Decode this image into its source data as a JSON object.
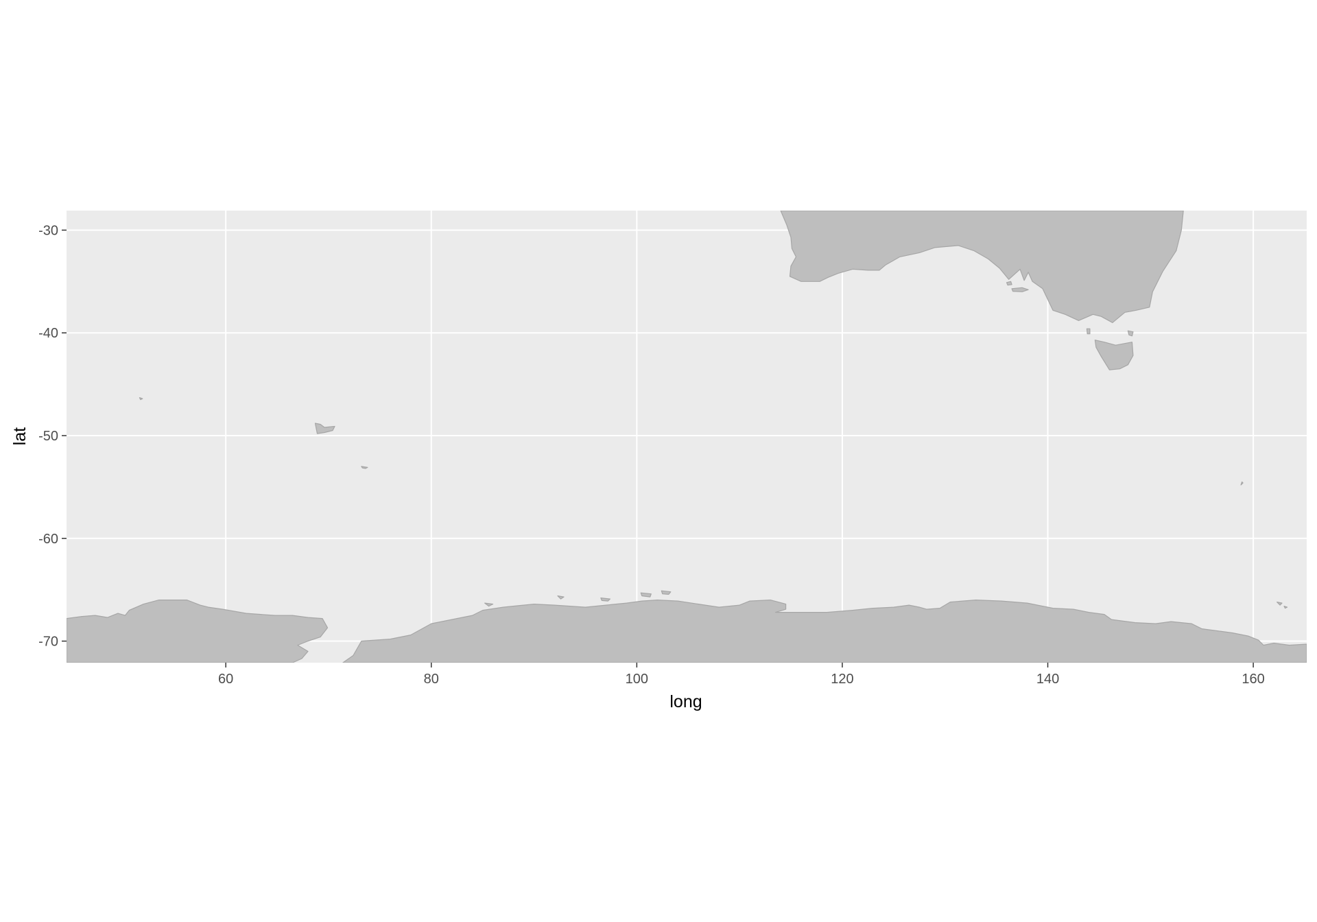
{
  "map": {
    "panel_background": "#ebebeb",
    "grid_color": "#ffffff",
    "land_fill": "#bebebe",
    "land_outline": "#a6a6a6",
    "xlim": [
      44.5,
      165.2
    ],
    "ylim": [
      -72.1,
      -28.1
    ],
    "xlabel": "long",
    "ylabel": "lat",
    "x_ticks": [
      60,
      80,
      100,
      120,
      140,
      160
    ],
    "y_ticks": [
      -30,
      -40,
      -50,
      -60,
      -70
    ],
    "x_tick_labels": [
      "60",
      "80",
      "100",
      "120",
      "140",
      "160"
    ],
    "y_tick_labels": [
      "-30",
      "-40",
      "-50",
      "-60",
      "-70"
    ],
    "land_polygons": [
      {
        "name": "Australia",
        "coords": [
          [
            114.0,
            -28.1
          ],
          [
            114.6,
            -29.5
          ],
          [
            115.0,
            -30.7
          ],
          [
            115.1,
            -31.8
          ],
          [
            115.5,
            -32.6
          ],
          [
            115.0,
            -33.5
          ],
          [
            114.9,
            -34.5
          ],
          [
            116.0,
            -35.0
          ],
          [
            117.8,
            -35.0
          ],
          [
            118.6,
            -34.6
          ],
          [
            119.6,
            -34.2
          ],
          [
            121.0,
            -33.8
          ],
          [
            122.5,
            -33.9
          ],
          [
            123.6,
            -33.9
          ],
          [
            124.2,
            -33.4
          ],
          [
            125.6,
            -32.6
          ],
          [
            127.5,
            -32.2
          ],
          [
            129.0,
            -31.7
          ],
          [
            131.3,
            -31.5
          ],
          [
            132.8,
            -32.0
          ],
          [
            134.2,
            -32.8
          ],
          [
            135.3,
            -33.7
          ],
          [
            136.2,
            -34.8
          ],
          [
            137.3,
            -33.8
          ],
          [
            137.7,
            -34.9
          ],
          [
            138.1,
            -34.1
          ],
          [
            138.5,
            -35.0
          ],
          [
            139.5,
            -35.7
          ],
          [
            140.5,
            -37.8
          ],
          [
            141.7,
            -38.2
          ],
          [
            143.0,
            -38.8
          ],
          [
            144.4,
            -38.2
          ],
          [
            145.2,
            -38.4
          ],
          [
            146.3,
            -39.0
          ],
          [
            147.5,
            -38.0
          ],
          [
            148.6,
            -37.8
          ],
          [
            149.9,
            -37.5
          ],
          [
            150.2,
            -36.0
          ],
          [
            151.2,
            -34.0
          ],
          [
            152.5,
            -32.0
          ],
          [
            153.0,
            -30.0
          ],
          [
            153.2,
            -28.1
          ]
        ]
      },
      {
        "name": "Kangaroo Island",
        "coords": [
          [
            136.5,
            -35.7
          ],
          [
            137.5,
            -35.6
          ],
          [
            138.1,
            -35.8
          ],
          [
            137.5,
            -36.0
          ],
          [
            136.6,
            -35.95
          ]
        ]
      },
      {
        "name": "Eyre Peninsula Islet",
        "coords": [
          [
            136.0,
            -35.1
          ],
          [
            136.4,
            -35.0
          ],
          [
            136.5,
            -35.3
          ],
          [
            136.1,
            -35.35
          ]
        ]
      },
      {
        "name": "King Island",
        "coords": [
          [
            143.8,
            -39.6
          ],
          [
            144.1,
            -39.6
          ],
          [
            144.1,
            -40.1
          ],
          [
            143.85,
            -40.1
          ]
        ]
      },
      {
        "name": "Flinders Island",
        "coords": [
          [
            147.8,
            -39.8
          ],
          [
            148.3,
            -39.9
          ],
          [
            148.2,
            -40.3
          ],
          [
            147.9,
            -40.2
          ]
        ]
      },
      {
        "name": "Tasmania",
        "coords": [
          [
            144.6,
            -40.7
          ],
          [
            145.5,
            -40.9
          ],
          [
            146.6,
            -41.2
          ],
          [
            148.2,
            -40.9
          ],
          [
            148.3,
            -42.2
          ],
          [
            147.8,
            -43.1
          ],
          [
            147.0,
            -43.5
          ],
          [
            146.0,
            -43.6
          ],
          [
            145.2,
            -42.3
          ],
          [
            144.7,
            -41.4
          ]
        ]
      },
      {
        "name": "Kerguelen Islands",
        "coords": [
          [
            68.7,
            -48.8
          ],
          [
            69.2,
            -48.9
          ],
          [
            69.6,
            -49.2
          ],
          [
            70.6,
            -49.1
          ],
          [
            70.4,
            -49.5
          ],
          [
            69.6,
            -49.7
          ],
          [
            68.9,
            -49.8
          ],
          [
            68.8,
            -49.3
          ]
        ]
      },
      {
        "name": "Heard Island",
        "coords": [
          [
            73.2,
            -53.0
          ],
          [
            73.8,
            -53.1
          ],
          [
            73.6,
            -53.2
          ],
          [
            73.3,
            -53.15
          ]
        ]
      },
      {
        "name": "Crozet Islet",
        "coords": [
          [
            51.6,
            -46.3
          ],
          [
            51.9,
            -46.4
          ],
          [
            51.7,
            -46.5
          ]
        ]
      },
      {
        "name": "Macquarie Island",
        "coords": [
          [
            158.9,
            -54.5
          ],
          [
            159.0,
            -54.6
          ],
          [
            158.8,
            -54.8
          ]
        ]
      },
      {
        "name": "Balleny Islands",
        "coords": [
          [
            162.3,
            -66.2
          ],
          [
            162.8,
            -66.3
          ],
          [
            162.6,
            -66.5
          ]
        ]
      },
      {
        "name": "Balleny Islet",
        "coords": [
          [
            163.0,
            -66.6
          ],
          [
            163.3,
            -66.7
          ],
          [
            163.1,
            -66.8
          ]
        ]
      },
      {
        "name": "Coastal Islet A",
        "coords": [
          [
            102.4,
            -65.1
          ],
          [
            103.3,
            -65.2
          ],
          [
            103.1,
            -65.45
          ],
          [
            102.5,
            -65.4
          ]
        ]
      },
      {
        "name": "Coastal Islet B",
        "coords": [
          [
            100.4,
            -65.3
          ],
          [
            101.4,
            -65.4
          ],
          [
            101.3,
            -65.7
          ],
          [
            100.5,
            -65.6
          ]
        ]
      },
      {
        "name": "Coastal Islet C",
        "coords": [
          [
            96.5,
            -65.8
          ],
          [
            97.4,
            -65.9
          ],
          [
            97.2,
            -66.1
          ],
          [
            96.6,
            -66.05
          ]
        ]
      },
      {
        "name": "Coastal Islet D",
        "coords": [
          [
            92.3,
            -65.6
          ],
          [
            92.9,
            -65.7
          ],
          [
            92.6,
            -65.9
          ]
        ]
      },
      {
        "name": "Coastal Islet E",
        "coords": [
          [
            85.2,
            -66.3
          ],
          [
            86.0,
            -66.4
          ],
          [
            85.6,
            -66.6
          ]
        ]
      },
      {
        "name": "Antarctica West",
        "coords": [
          [
            44.5,
            -67.8
          ],
          [
            46.0,
            -67.6
          ],
          [
            47.3,
            -67.5
          ],
          [
            48.5,
            -67.7
          ],
          [
            49.5,
            -67.3
          ],
          [
            50.2,
            -67.5
          ],
          [
            50.6,
            -67.0
          ],
          [
            52.0,
            -66.4
          ],
          [
            53.5,
            -66.0
          ],
          [
            56.2,
            -66.0
          ],
          [
            57.5,
            -66.5
          ],
          [
            58.3,
            -66.7
          ],
          [
            59.7,
            -66.9
          ],
          [
            62.0,
            -67.3
          ],
          [
            64.8,
            -67.5
          ],
          [
            66.5,
            -67.5
          ],
          [
            68.0,
            -67.7
          ],
          [
            69.4,
            -67.8
          ],
          [
            69.9,
            -68.7
          ],
          [
            69.2,
            -69.6
          ],
          [
            68.0,
            -70.0
          ],
          [
            67.0,
            -70.4
          ],
          [
            68.0,
            -71.0
          ],
          [
            67.4,
            -71.7
          ],
          [
            66.5,
            -72.1
          ],
          [
            44.5,
            -72.1
          ]
        ]
      },
      {
        "name": "Antarctica East",
        "coords": [
          [
            71.4,
            -72.1
          ],
          [
            72.4,
            -71.4
          ],
          [
            73.2,
            -70.0
          ],
          [
            76.0,
            -69.8
          ],
          [
            78.0,
            -69.4
          ],
          [
            80.0,
            -68.3
          ],
          [
            82.0,
            -67.9
          ],
          [
            84.0,
            -67.5
          ],
          [
            85.0,
            -67.0
          ],
          [
            87.0,
            -66.7
          ],
          [
            90.0,
            -66.4
          ],
          [
            92.0,
            -66.5
          ],
          [
            95.0,
            -66.7
          ],
          [
            97.0,
            -66.5
          ],
          [
            99.0,
            -66.3
          ],
          [
            100.5,
            -66.1
          ],
          [
            102.0,
            -66.0
          ],
          [
            104.0,
            -66.1
          ],
          [
            106.0,
            -66.4
          ],
          [
            108.0,
            -66.7
          ],
          [
            110.0,
            -66.5
          ],
          [
            111.0,
            -66.1
          ],
          [
            113.0,
            -66.0
          ],
          [
            114.5,
            -66.4
          ],
          [
            114.5,
            -66.9
          ],
          [
            113.5,
            -67.2
          ],
          [
            116.0,
            -67.2
          ],
          [
            118.5,
            -67.2
          ],
          [
            121.0,
            -67.0
          ],
          [
            123.0,
            -66.8
          ],
          [
            125.0,
            -66.7
          ],
          [
            126.5,
            -66.5
          ],
          [
            127.5,
            -66.7
          ],
          [
            128.2,
            -66.9
          ],
          [
            129.5,
            -66.8
          ],
          [
            130.5,
            -66.2
          ],
          [
            133.0,
            -66.0
          ],
          [
            135.5,
            -66.1
          ],
          [
            138.0,
            -66.3
          ],
          [
            140.5,
            -66.8
          ],
          [
            142.5,
            -66.9
          ],
          [
            144.0,
            -67.2
          ],
          [
            145.5,
            -67.4
          ],
          [
            146.2,
            -67.9
          ],
          [
            148.5,
            -68.2
          ],
          [
            150.5,
            -68.3
          ],
          [
            152.0,
            -68.1
          ],
          [
            154.0,
            -68.3
          ],
          [
            155.0,
            -68.8
          ],
          [
            156.5,
            -69.0
          ],
          [
            158.0,
            -69.2
          ],
          [
            159.5,
            -69.5
          ],
          [
            160.5,
            -69.9
          ],
          [
            161.0,
            -70.4
          ],
          [
            162.0,
            -70.2
          ],
          [
            163.5,
            -70.4
          ],
          [
            165.2,
            -70.3
          ],
          [
            165.2,
            -72.1
          ]
        ]
      }
    ]
  }
}
